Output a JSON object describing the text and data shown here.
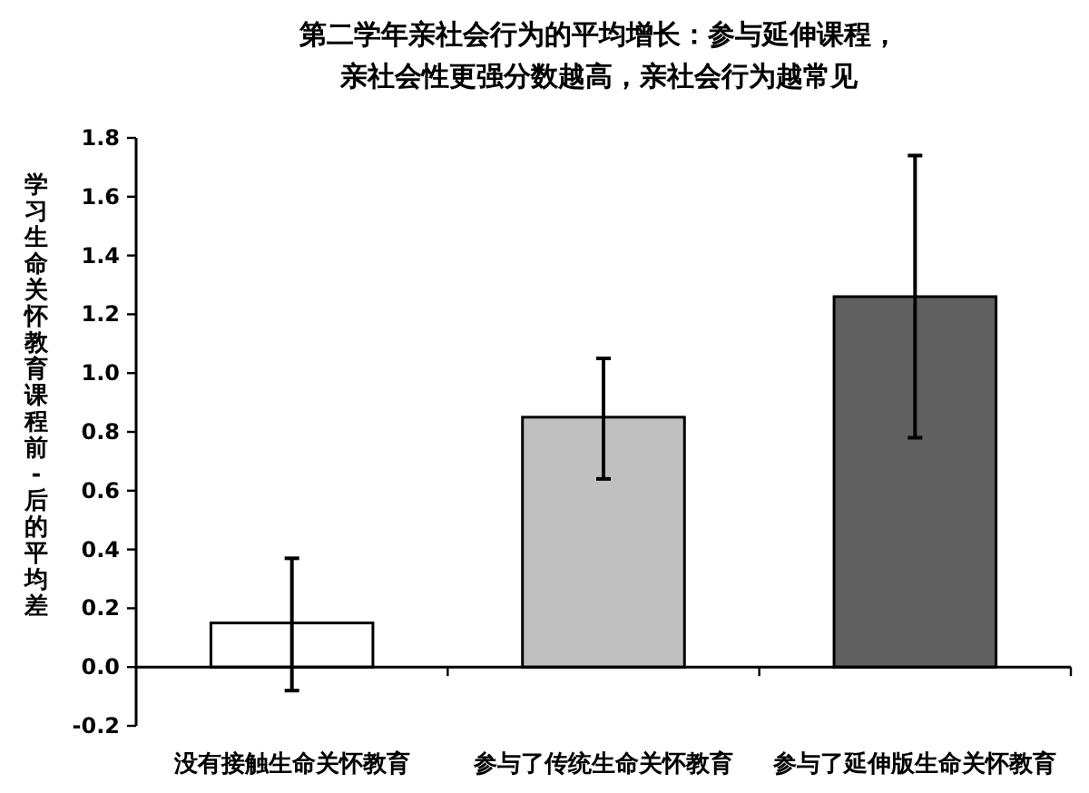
{
  "chart_data": {
    "type": "bar",
    "title": "第二学年亲社会行为的平均增长：参与延伸课程，亲社会性更强分数越高，亲社会行为越常见",
    "ylabel": "学习生命关怀教育课程前 - 后的平均差",
    "categories": [
      "没有接触生命关怀教育",
      "参与了传统生命关怀教育",
      "参与了延伸版生命关怀教育"
    ],
    "values": [
      0.15,
      0.85,
      1.26
    ],
    "colors": [
      "#ffffff",
      "#c0c0c0",
      "#606060"
    ],
    "errors": [
      [
        -0.08,
        0.37
      ],
      [
        0.64,
        1.05
      ],
      [
        0.78,
        1.74
      ]
    ],
    "ylim": [
      -0.2,
      1.8
    ],
    "yticks": [
      {
        "value": -0.2,
        "label": "-0.2"
      },
      {
        "value": 0,
        "label": "0.0"
      },
      {
        "value": 0.2,
        "label": "0.2"
      },
      {
        "value": 0.4,
        "label": "0.4"
      },
      {
        "value": 0.6,
        "label": "0.6"
      },
      {
        "value": 0.8,
        "label": "0.8"
      },
      {
        "value": 1,
        "label": "1.0"
      },
      {
        "value": 1.2,
        "label": "1.2"
      },
      {
        "value": 1.4,
        "label": "1.4"
      },
      {
        "value": 1.6,
        "label": "1.6"
      },
      {
        "value": 1.8,
        "label": "1.8"
      }
    ]
  }
}
